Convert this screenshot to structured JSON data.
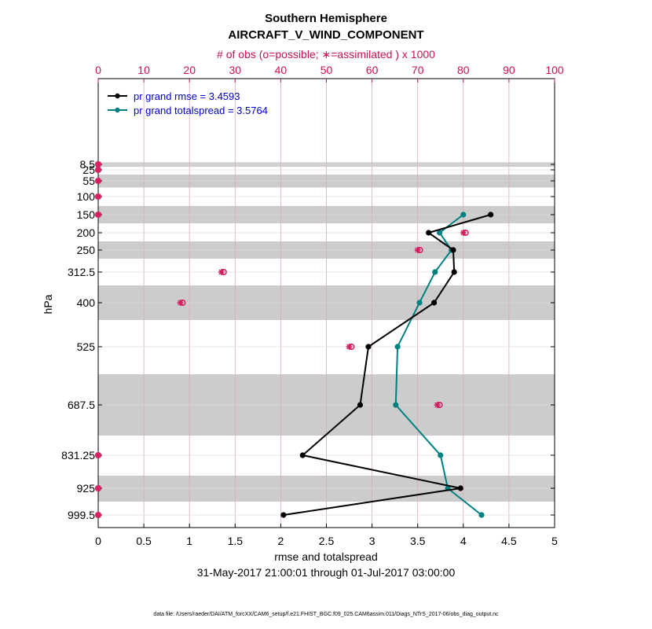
{
  "chart_data": {
    "type": "line",
    "title_line1": "Southern Hemisphere",
    "title_line2": "AIRCRAFT_V_WIND_COMPONENT",
    "top_axis_label": "# of obs (o=possible; ∗=assimilated ) x 1000",
    "xlabel": "rmse and totalspread",
    "ylabel": "hPa",
    "date_range": "31-May-2017 21:00:01 through 01-Jul-2017 03:00:00",
    "footnote": "data file: /Users/raeder/DAI/ATM_forcXX/CAM6_setup/f.e21.FHIST_BGC.f09_025.CAM6assim.011/Diags_NTrS_2017-06/obs_diag_output.nc",
    "xlim": [
      0,
      5
    ],
    "x_ticks": [
      0,
      0.5,
      1,
      1.5,
      2,
      2.5,
      3,
      3.5,
      4,
      4.5,
      5
    ],
    "x_tick_labels": [
      "0",
      "0.5",
      "1",
      "1.5",
      "2",
      "2.5",
      "3",
      "3.5",
      "4",
      "4.5",
      "5"
    ],
    "top_xlim": [
      0,
      100
    ],
    "top_ticks": [
      0,
      10,
      20,
      30,
      40,
      50,
      60,
      70,
      80,
      90,
      100
    ],
    "top_tick_labels": [
      "0",
      "10",
      "20",
      "30",
      "40",
      "50",
      "60",
      "70",
      "80",
      "90",
      "100"
    ],
    "levels": [
      8.5,
      25,
      55,
      100,
      150,
      200,
      250,
      312.5,
      400,
      525,
      687.5,
      831.25,
      925,
      999.5
    ],
    "level_labels": [
      "8.5",
      "25",
      "55",
      "100",
      "150",
      "200",
      "250",
      "312.5",
      "400",
      "525",
      "687.5",
      "831.25",
      "925",
      "999.5"
    ],
    "series": [
      {
        "name": "rmse",
        "legend": "pr grand rmse = 3.4593",
        "color": "#000000",
        "levels": [
          150,
          200,
          250,
          312.5,
          400,
          525,
          687.5,
          831.25,
          925,
          999.5
        ],
        "values": [
          4.3,
          3.62,
          3.89,
          3.9,
          3.68,
          2.96,
          2.87,
          2.24,
          3.97,
          2.03
        ]
      },
      {
        "name": "totalspread",
        "legend": "pr grand totalspread = 3.5764",
        "color": "#008080",
        "levels": [
          150,
          200,
          250,
          312.5,
          400,
          525,
          687.5,
          831.25,
          925,
          999.5
        ],
        "values": [
          4.0,
          3.74,
          3.87,
          3.69,
          3.52,
          3.28,
          3.26,
          3.75,
          3.83,
          4.2
        ]
      }
    ],
    "obs_possible": {
      "levels": [
        8.5,
        25,
        55,
        100,
        150,
        200,
        250,
        312.5,
        400,
        525,
        687.5,
        831.25,
        925,
        999.5
      ],
      "values": [
        0,
        0,
        0,
        0,
        0,
        80.5,
        70.5,
        27.5,
        18.5,
        55.5,
        74.8,
        0,
        0,
        0
      ]
    },
    "obs_assimilated": {
      "levels": [
        8.5,
        25,
        55,
        100,
        150,
        200,
        250,
        312.5,
        400,
        525,
        687.5,
        831.25,
        925,
        999.5
      ],
      "values": [
        0,
        0,
        0,
        0,
        0,
        80,
        70,
        27,
        18,
        55,
        74.3,
        0,
        0,
        0
      ]
    },
    "colors": {
      "obs": "#d81b60",
      "band": "#cccccc",
      "grid": "#d9aab8",
      "legend_text": "#0000cc",
      "top_axis": "#cc1155"
    }
  }
}
